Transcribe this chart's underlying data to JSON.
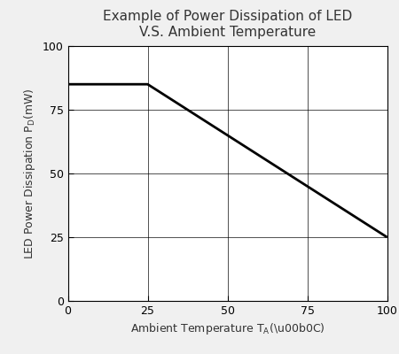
{
  "title_line1": "Example of Power Dissipation of LED",
  "title_line2": "V.S. Ambient Temperature",
  "xlabel_base": "Ambient Temperature T",
  "xlabel_sub": "A",
  "ylabel_base": "LED Power Dissipation P",
  "ylabel_sub": "D",
  "ylabel_unit": "(mW)",
  "x_data": [
    0,
    25,
    100
  ],
  "y_data": [
    85,
    85,
    25
  ],
  "xlim": [
    0,
    100
  ],
  "ylim": [
    0,
    100
  ],
  "xticks": [
    0,
    25,
    50,
    75,
    100
  ],
  "yticks": [
    0,
    25,
    50,
    75,
    100
  ],
  "line_color": "#000000",
  "line_width": 2.0,
  "grid_color": "#000000",
  "grid_linewidth": 0.6,
  "background_color": "#f0f0f0",
  "title_fontsize": 11,
  "label_fontsize": 9,
  "tick_fontsize": 9
}
